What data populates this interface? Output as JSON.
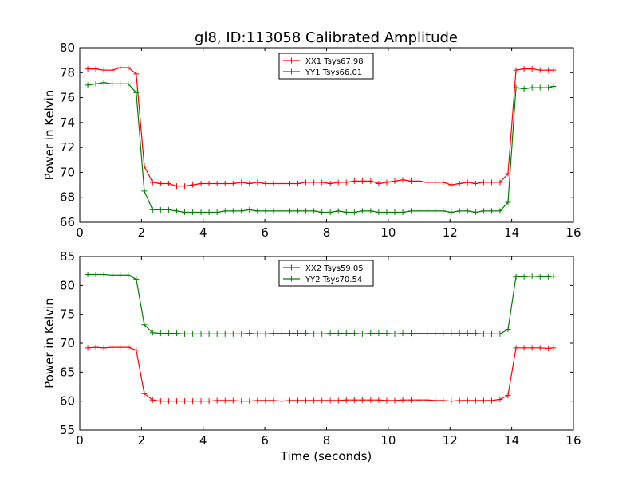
{
  "figure": {
    "title": "gl8, ID:113058 Calibrated Amplitude",
    "xlabel": "Time (seconds)"
  },
  "chart_data": [
    {
      "type": "line",
      "title": "gl8, ID:113058 Calibrated Amplitude",
      "xlabel": "",
      "ylabel": "Power in Kelvin",
      "xlim": [
        0,
        16
      ],
      "ylim": [
        66,
        80
      ],
      "xticks": [
        "0",
        "2",
        "4",
        "6",
        "8",
        "10",
        "12",
        "14",
        "16"
      ],
      "yticks": [
        "66",
        "68",
        "70",
        "72",
        "74",
        "76",
        "78",
        "80"
      ],
      "grid": false,
      "legend_position": "top-center",
      "x": [
        0.26,
        0.52,
        0.78,
        1.05,
        1.31,
        1.57,
        1.83,
        2.09,
        2.36,
        2.62,
        2.88,
        3.14,
        3.4,
        3.66,
        3.93,
        4.19,
        4.45,
        4.71,
        4.97,
        5.24,
        5.5,
        5.76,
        6.02,
        6.28,
        6.55,
        6.81,
        7.07,
        7.33,
        7.59,
        7.85,
        8.12,
        8.38,
        8.64,
        8.9,
        9.16,
        9.43,
        9.69,
        9.95,
        10.21,
        10.47,
        10.74,
        11.0,
        11.26,
        11.52,
        11.78,
        12.04,
        12.31,
        12.57,
        12.83,
        13.09,
        13.35,
        13.62,
        13.88,
        14.14,
        14.4,
        14.66,
        14.92,
        15.19,
        15.35
      ],
      "series": [
        {
          "name": "XX1 Tsys67.98",
          "color": "#ff0000",
          "values": [
            78.3,
            78.3,
            78.2,
            78.2,
            78.4,
            78.4,
            77.9,
            70.5,
            69.2,
            69.1,
            69.1,
            68.9,
            68.9,
            69.0,
            69.1,
            69.1,
            69.1,
            69.1,
            69.1,
            69.2,
            69.1,
            69.2,
            69.1,
            69.1,
            69.1,
            69.1,
            69.1,
            69.2,
            69.2,
            69.2,
            69.1,
            69.2,
            69.2,
            69.3,
            69.3,
            69.3,
            69.1,
            69.2,
            69.3,
            69.4,
            69.3,
            69.3,
            69.2,
            69.2,
            69.2,
            69.0,
            69.1,
            69.2,
            69.1,
            69.2,
            69.2,
            69.2,
            69.9,
            78.2,
            78.3,
            78.3,
            78.2,
            78.2,
            78.2
          ]
        },
        {
          "name": "YY1 Tsys66.01",
          "color": "#008000",
          "values": [
            77.0,
            77.1,
            77.2,
            77.1,
            77.1,
            77.1,
            76.4,
            68.5,
            67.0,
            67.0,
            67.0,
            66.9,
            66.8,
            66.8,
            66.8,
            66.8,
            66.8,
            66.9,
            66.9,
            66.9,
            67.0,
            66.9,
            66.9,
            66.9,
            66.9,
            66.9,
            66.9,
            66.9,
            66.9,
            66.8,
            66.8,
            66.9,
            66.8,
            66.8,
            66.9,
            66.9,
            66.8,
            66.8,
            66.8,
            66.8,
            66.9,
            66.9,
            66.9,
            66.9,
            66.9,
            66.8,
            66.9,
            66.9,
            66.8,
            66.9,
            66.9,
            66.9,
            67.6,
            76.8,
            76.7,
            76.8,
            76.8,
            76.8,
            76.9
          ]
        }
      ]
    },
    {
      "type": "line",
      "title": "",
      "xlabel": "Time (seconds)",
      "ylabel": "Power in Kelvin",
      "xlim": [
        0,
        16
      ],
      "ylim": [
        55,
        85
      ],
      "xticks": [
        "0",
        "2",
        "4",
        "6",
        "8",
        "10",
        "12",
        "14",
        "16"
      ],
      "yticks": [
        "55",
        "60",
        "65",
        "70",
        "75",
        "80",
        "85"
      ],
      "grid": false,
      "legend_position": "top-center",
      "x": [
        0.26,
        0.52,
        0.78,
        1.05,
        1.31,
        1.57,
        1.83,
        2.09,
        2.36,
        2.62,
        2.88,
        3.14,
        3.4,
        3.66,
        3.93,
        4.19,
        4.45,
        4.71,
        4.97,
        5.24,
        5.5,
        5.76,
        6.02,
        6.28,
        6.55,
        6.81,
        7.07,
        7.33,
        7.59,
        7.85,
        8.12,
        8.38,
        8.64,
        8.9,
        9.16,
        9.43,
        9.69,
        9.95,
        10.21,
        10.47,
        10.74,
        11.0,
        11.26,
        11.52,
        11.78,
        12.04,
        12.31,
        12.57,
        12.83,
        13.09,
        13.35,
        13.62,
        13.88,
        14.14,
        14.4,
        14.66,
        14.92,
        15.19,
        15.35
      ],
      "series": [
        {
          "name": "XX2 Tsys59.05",
          "color": "#ff0000",
          "values": [
            69.2,
            69.3,
            69.2,
            69.3,
            69.3,
            69.3,
            68.8,
            61.3,
            60.2,
            60.0,
            60.0,
            60.0,
            60.0,
            60.0,
            60.0,
            60.0,
            60.1,
            60.1,
            60.1,
            60.0,
            60.0,
            60.1,
            60.1,
            60.1,
            60.0,
            60.1,
            60.1,
            60.1,
            60.1,
            60.1,
            60.1,
            60.1,
            60.2,
            60.2,
            60.2,
            60.2,
            60.2,
            60.1,
            60.1,
            60.2,
            60.2,
            60.2,
            60.2,
            60.1,
            60.1,
            60.0,
            60.1,
            60.1,
            60.1,
            60.1,
            60.1,
            60.3,
            61.0,
            69.2,
            69.2,
            69.2,
            69.2,
            69.1,
            69.2
          ]
        },
        {
          "name": "YY2 Tsys70.54",
          "color": "#008000",
          "values": [
            81.9,
            81.9,
            81.9,
            81.8,
            81.8,
            81.8,
            81.1,
            73.2,
            71.8,
            71.7,
            71.7,
            71.7,
            71.6,
            71.6,
            71.6,
            71.6,
            71.6,
            71.6,
            71.6,
            71.6,
            71.7,
            71.6,
            71.6,
            71.7,
            71.7,
            71.7,
            71.7,
            71.7,
            71.6,
            71.6,
            71.7,
            71.7,
            71.7,
            71.7,
            71.6,
            71.7,
            71.7,
            71.7,
            71.6,
            71.7,
            71.7,
            71.7,
            71.7,
            71.7,
            71.7,
            71.7,
            71.7,
            71.7,
            71.7,
            71.6,
            71.6,
            71.6,
            72.4,
            81.5,
            81.5,
            81.6,
            81.5,
            81.5,
            81.6
          ]
        }
      ]
    }
  ]
}
